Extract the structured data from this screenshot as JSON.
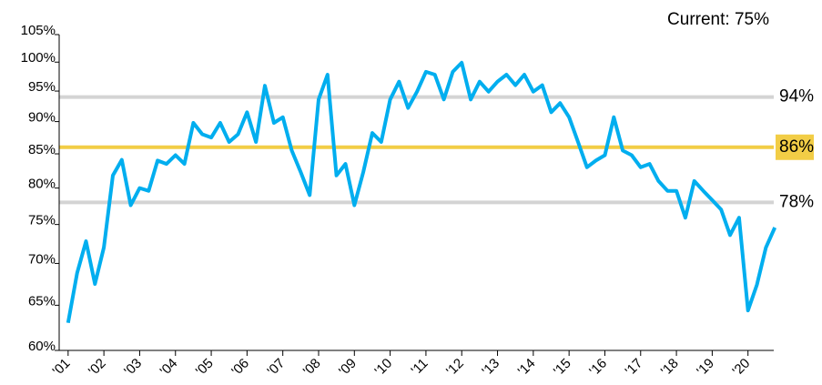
{
  "chart_data": {
    "type": "line",
    "annotation": "Current: 75%",
    "x": [
      2001,
      2001.25,
      2001.5,
      2001.75,
      2002,
      2002.25,
      2002.5,
      2002.75,
      2003,
      2003.25,
      2003.5,
      2003.75,
      2004,
      2004.25,
      2004.5,
      2004.75,
      2005,
      2005.25,
      2005.5,
      2005.75,
      2006,
      2006.25,
      2006.5,
      2006.75,
      2007,
      2007.25,
      2007.5,
      2007.75,
      2008,
      2008.25,
      2008.5,
      2008.75,
      2009,
      2009.25,
      2009.5,
      2009.75,
      2010,
      2010.25,
      2010.5,
      2010.75,
      2011,
      2011.25,
      2011.5,
      2011.75,
      2012,
      2012.25,
      2012.5,
      2012.75,
      2013,
      2013.25,
      2013.5,
      2013.75,
      2014,
      2014.25,
      2014.5,
      2014.75,
      2015,
      2015.25,
      2015.5,
      2015.75,
      2016,
      2016.25,
      2016.5,
      2016.75,
      2017,
      2017.25,
      2017.5,
      2017.75,
      2018,
      2018.25,
      2018.5,
      2018.75,
      2019,
      2019.25,
      2019.5,
      2019.75,
      2020,
      2020.25,
      2020.5,
      2020.75
    ],
    "values": [
      63,
      68.8,
      72.8,
      67.5,
      72,
      81.8,
      84.1,
      77.6,
      80,
      79.6,
      84,
      83.5,
      84.8,
      83.5,
      89.8,
      88,
      87.5,
      89.8,
      86.8,
      88,
      91.5,
      86.8,
      95.9,
      89.8,
      90.7,
      85.5,
      82.3,
      79,
      93.6,
      97.8,
      81.8,
      83.5,
      77.6,
      82.3,
      88.2,
      86.8,
      93.6,
      96.6,
      92.2,
      94.9,
      98.3,
      97.8,
      93.6,
      98.3,
      99.9,
      93.6,
      96.6,
      94.9,
      96.6,
      97.8,
      96,
      97.8,
      94.9,
      96,
      91.5,
      93,
      90.7,
      86.8,
      83,
      84,
      84.8,
      90.7,
      85.5,
      84.8,
      83,
      83.5,
      81,
      79.6,
      79.6,
      75.9,
      81,
      79.6,
      78.3,
      77,
      73.6,
      75.9,
      64.4,
      67.4,
      72,
      74.6
    ],
    "color": "#00aeef",
    "log_scale": true,
    "ylim": [
      60,
      105
    ],
    "yticks": [
      {
        "value": 60,
        "label": "60%"
      },
      {
        "value": 65,
        "label": "65%"
      },
      {
        "value": 70,
        "label": "70%"
      },
      {
        "value": 75,
        "label": "75%"
      },
      {
        "value": 80,
        "label": "80%"
      },
      {
        "value": 85,
        "label": "85%"
      },
      {
        "value": 90,
        "label": "90%"
      },
      {
        "value": 95,
        "label": "95%"
      },
      {
        "value": 100,
        "label": "100%"
      },
      {
        "value": 105,
        "label": "105%"
      }
    ],
    "xlim": [
      2000.75,
      2020.72
    ],
    "xticks": [
      {
        "value": 2001,
        "label": "'01"
      },
      {
        "value": 2002,
        "label": "'02"
      },
      {
        "value": 2003,
        "label": "'03"
      },
      {
        "value": 2004,
        "label": "'04"
      },
      {
        "value": 2005,
        "label": "'05"
      },
      {
        "value": 2006,
        "label": "'06"
      },
      {
        "value": 2007,
        "label": "'07"
      },
      {
        "value": 2008,
        "label": "'08"
      },
      {
        "value": 2009,
        "label": "'09"
      },
      {
        "value": 2010,
        "label": "'10"
      },
      {
        "value": 2011,
        "label": "'11"
      },
      {
        "value": 2012,
        "label": "'12"
      },
      {
        "value": 2013,
        "label": "'13"
      },
      {
        "value": 2014,
        "label": "'14"
      },
      {
        "value": 2015,
        "label": "'15"
      },
      {
        "value": 2016,
        "label": "'16"
      },
      {
        "value": 2017,
        "label": "'17"
      },
      {
        "value": 2018,
        "label": "'18"
      },
      {
        "value": 2019,
        "label": "'19"
      },
      {
        "value": 2020,
        "label": "'20"
      }
    ],
    "reference_lines": [
      {
        "value": 94,
        "label": "94%",
        "color": "#d4d4d4"
      },
      {
        "value": 86,
        "label": "86%",
        "color": "#f2cd46",
        "highlight": true
      },
      {
        "value": 78,
        "label": "78%",
        "color": "#d4d4d4"
      }
    ]
  }
}
